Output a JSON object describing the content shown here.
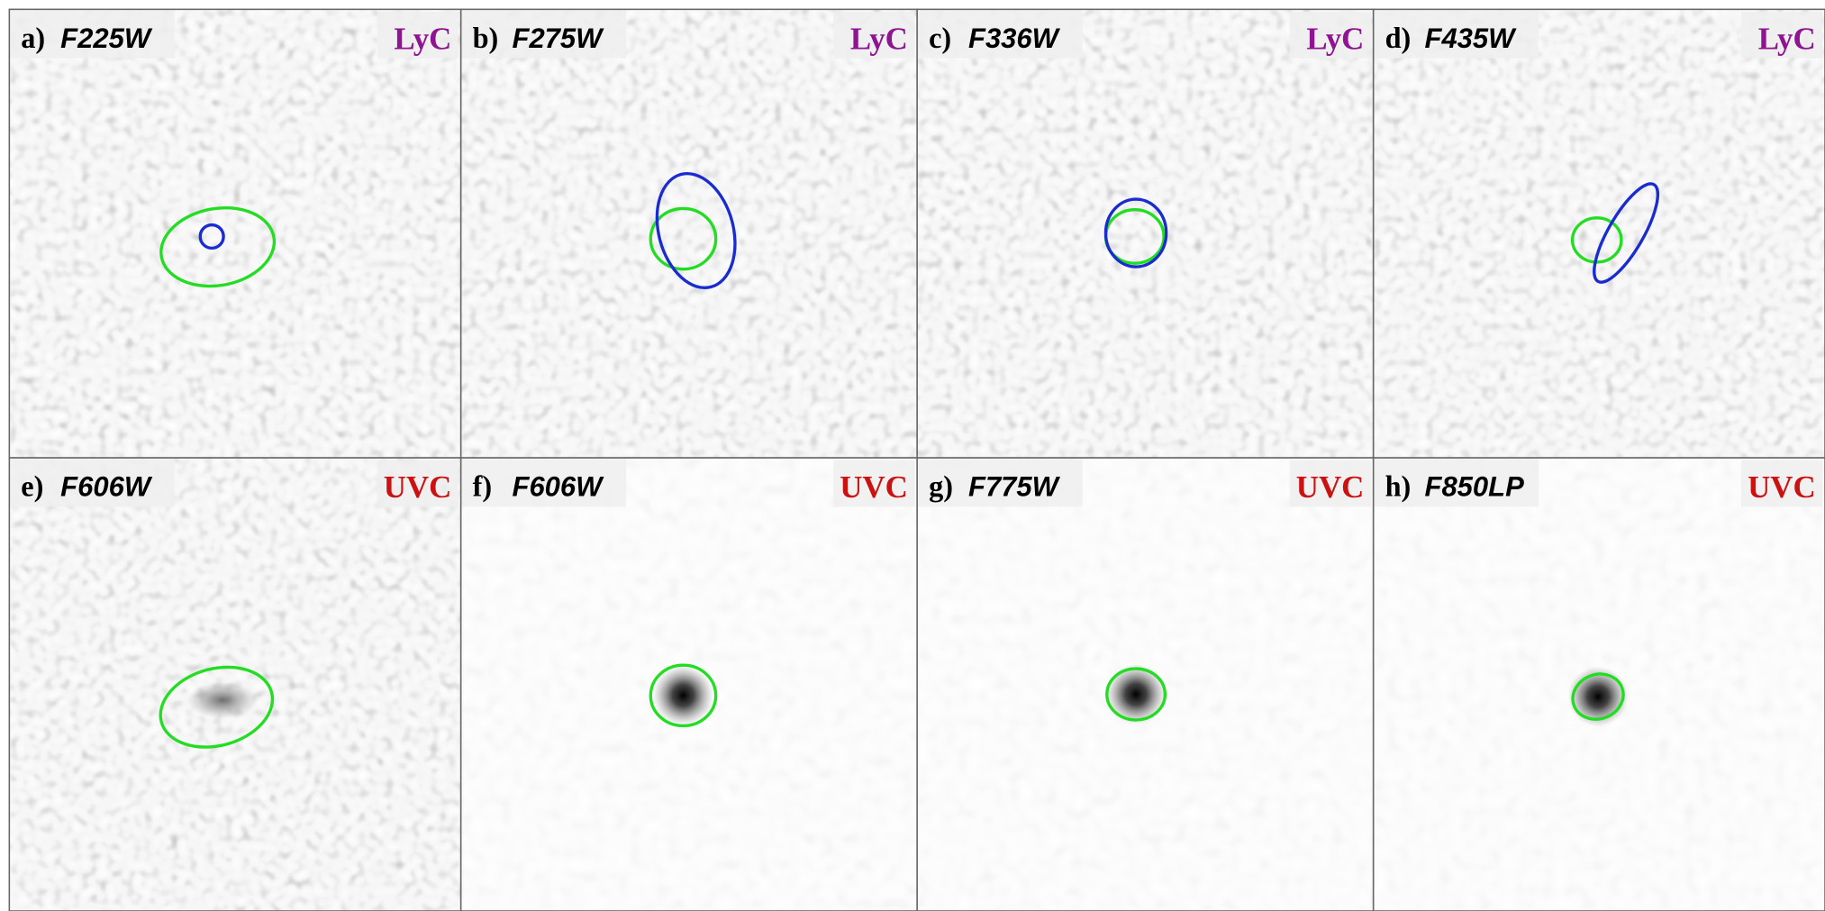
{
  "panels": [
    {
      "label": "a)",
      "filter": "F225W",
      "band": "LyC"
    },
    {
      "label": "b)",
      "filter": "F275W",
      "band": "LyC"
    },
    {
      "label": "c)",
      "filter": "F336W",
      "band": "LyC"
    },
    {
      "label": "d)",
      "filter": "F435W",
      "band": "LyC"
    },
    {
      "label": "e)",
      "filter": "F606W",
      "band": "UVC"
    },
    {
      "label": "f)",
      "filter": "F606W",
      "band": "UVC"
    },
    {
      "label": "g)",
      "filter": "F775W",
      "band": "UVC"
    },
    {
      "label": "h)",
      "filter": "F850LP",
      "band": "UVC"
    }
  ]
}
